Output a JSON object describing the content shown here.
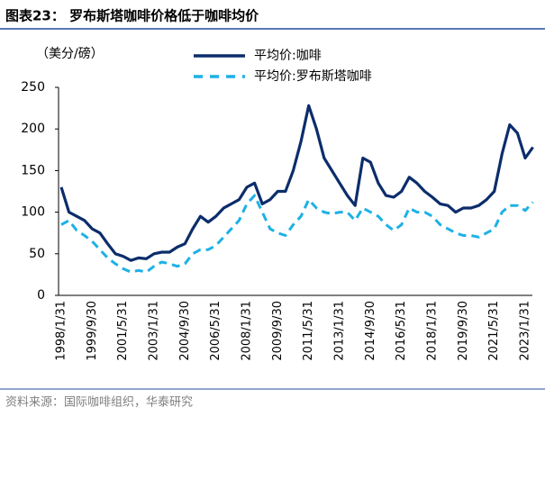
{
  "chart_data": {
    "type": "line",
    "title": "图表23：  罗布斯塔咖啡价格低于咖啡均价",
    "y_label": "（美分/磅）",
    "source": "资料来源：国际咖啡组织，华泰研究",
    "categories": [
      "1998/1/31",
      null,
      null,
      null,
      "1999/9/30",
      null,
      null,
      null,
      "2001/5/31",
      null,
      null,
      null,
      "2003/1/31",
      null,
      null,
      null,
      "2004/9/30",
      null,
      null,
      null,
      "2006/5/31",
      null,
      null,
      null,
      "2008/1/31",
      null,
      null,
      null,
      "2009/9/30",
      null,
      null,
      null,
      "2011/5/31",
      null,
      null,
      null,
      "2013/1/31",
      null,
      null,
      null,
      "2014/9/30",
      null,
      null,
      null,
      "2016/5/31",
      null,
      null,
      null,
      "2018/1/31",
      null,
      null,
      null,
      "2019/9/30",
      null,
      null,
      null,
      "2021/5/31",
      null,
      null,
      null,
      "2023/1/31",
      null
    ],
    "series": [
      {
        "name": "平均价:咖啡",
        "color": "#0c2d6b",
        "dashed": false,
        "values": [
          130,
          100,
          95,
          90,
          80,
          75,
          62,
          50,
          47,
          42,
          45,
          44,
          50,
          52,
          52,
          58,
          62,
          80,
          95,
          88,
          95,
          105,
          110,
          115,
          130,
          135,
          110,
          115,
          125,
          125,
          150,
          185,
          228,
          200,
          165,
          150,
          135,
          120,
          108,
          165,
          160,
          135,
          120,
          118,
          125,
          142,
          135,
          125,
          118,
          110,
          108,
          100,
          105,
          105,
          108,
          115,
          125,
          170,
          205,
          195,
          165,
          178
        ]
      },
      {
        "name": "平均价:罗布斯塔咖啡",
        "color": "#1cb1e6",
        "dashed": true,
        "values": [
          85,
          90,
          78,
          72,
          65,
          55,
          45,
          38,
          32,
          28,
          30,
          28,
          35,
          40,
          38,
          35,
          38,
          50,
          55,
          55,
          60,
          70,
          80,
          90,
          110,
          120,
          100,
          80,
          75,
          72,
          85,
          95,
          115,
          105,
          100,
          98,
          100,
          100,
          90,
          105,
          100,
          95,
          85,
          78,
          85,
          105,
          100,
          100,
          95,
          85,
          80,
          75,
          72,
          72,
          70,
          75,
          80,
          100,
          108,
          108,
          102,
          112
        ]
      }
    ],
    "ylim": [
      0,
      250
    ],
    "yticks": [
      0,
      50,
      100,
      150,
      200,
      250
    ]
  }
}
